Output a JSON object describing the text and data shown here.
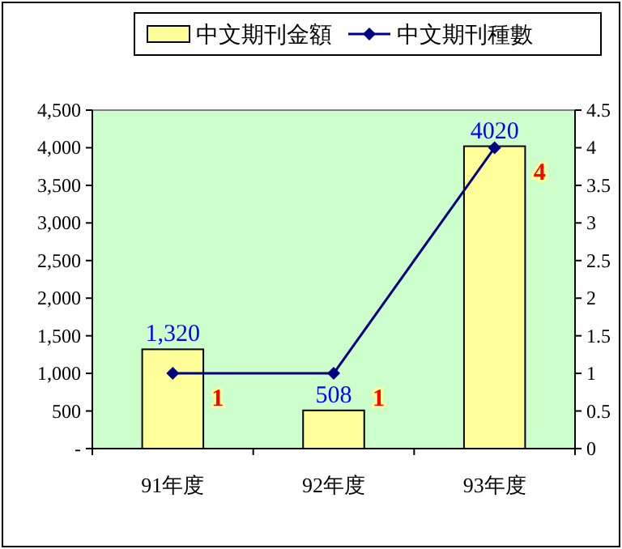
{
  "chart_data": {
    "type": "bar",
    "categories": [
      "91年度",
      "92年度",
      "93年度"
    ],
    "series": [
      {
        "name": "中文期刊金額",
        "color": "#ffff99",
        "values": [
          1320,
          508,
          4020
        ],
        "value_labels": [
          "1,320",
          "508",
          "4020"
        ]
      },
      {
        "name": "中文期刊種數",
        "type": "line",
        "axis": "y2",
        "color": "#000080",
        "values": [
          1,
          1,
          4
        ],
        "value_labels": [
          "1",
          "1",
          "4"
        ]
      }
    ],
    "ylim": [
      0,
      4500
    ],
    "yticks": [
      {
        "value": 0,
        "label": "-"
      },
      {
        "value": 500,
        "label": "500"
      },
      {
        "value": 1000,
        "label": "1,000"
      },
      {
        "value": 1500,
        "label": "1,500"
      },
      {
        "value": 2000,
        "label": "2,000"
      },
      {
        "value": 2500,
        "label": "2,500"
      },
      {
        "value": 3000,
        "label": "3,000"
      },
      {
        "value": 3500,
        "label": "3,500"
      },
      {
        "value": 4000,
        "label": "4,000"
      },
      {
        "value": 4500,
        "label": "4,500"
      }
    ],
    "y2lim": [
      0,
      4.5
    ],
    "y2ticks": [
      0,
      0.5,
      1,
      1.5,
      2,
      2.5,
      3,
      3.5,
      4,
      4.5
    ],
    "legend": "top",
    "marker": "diamond",
    "grid": false
  }
}
